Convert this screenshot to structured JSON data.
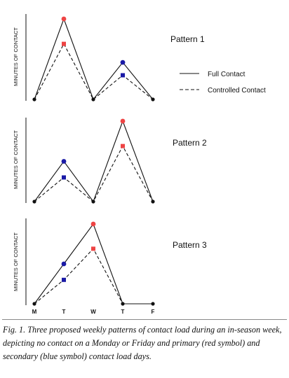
{
  "chart_data": [
    {
      "type": "line",
      "title": "Pattern 1",
      "ylabel": "MINUTES OF CONTACT",
      "categories": [
        "M",
        "T",
        "W",
        "T",
        "F"
      ],
      "series": [
        {
          "name": "Full Contact",
          "style": "solid",
          "values": [
            0,
            100,
            0,
            46,
            0
          ]
        },
        {
          "name": "Controlled Contact",
          "style": "dashed",
          "values": [
            0,
            69,
            0,
            30,
            0
          ]
        }
      ],
      "markers": [
        "none",
        "red",
        "none",
        "blue",
        "none"
      ]
    },
    {
      "type": "line",
      "title": "Pattern 2",
      "ylabel": "MINUTES OF CONTACT",
      "categories": [
        "M",
        "T",
        "W",
        "T",
        "F"
      ],
      "series": [
        {
          "name": "Full Contact",
          "style": "solid",
          "values": [
            0,
            50,
            0,
            100,
            0
          ]
        },
        {
          "name": "Controlled Contact",
          "style": "dashed",
          "values": [
            0,
            30,
            0,
            69,
            0
          ]
        }
      ],
      "markers": [
        "none",
        "blue",
        "none",
        "red",
        "none"
      ]
    },
    {
      "type": "line",
      "title": "Pattern 3",
      "ylabel": "MINUTES OF CONTACT",
      "categories": [
        "M",
        "T",
        "W",
        "T",
        "F"
      ],
      "series": [
        {
          "name": "Full Contact",
          "style": "solid",
          "values": [
            0,
            50,
            100,
            0,
            0
          ]
        },
        {
          "name": "Controlled Contact",
          "style": "dashed",
          "values": [
            0,
            30,
            69,
            0,
            0
          ]
        }
      ],
      "markers": [
        "none",
        "blue",
        "red",
        "none",
        "none"
      ]
    }
  ],
  "legend": {
    "placement": "right",
    "entries": [
      {
        "label": "Full Contact",
        "style": "solid"
      },
      {
        "label": "Controlled Contact",
        "style": "dashed"
      }
    ]
  },
  "xaxis_ticks": [
    "M",
    "T",
    "W",
    "T",
    "F"
  ],
  "colors": {
    "primary": "#ee4444",
    "secondary": "#1a1aa6",
    "line": "#111111",
    "neutral": "#111111"
  },
  "caption": {
    "label": "Fig. 1.",
    "text": "Three proposed weekly patterns of contact load during an in-season week, depicting no contact on a Monday or Friday and primary (red symbol) and secondary (blue symbol) contact load days."
  }
}
